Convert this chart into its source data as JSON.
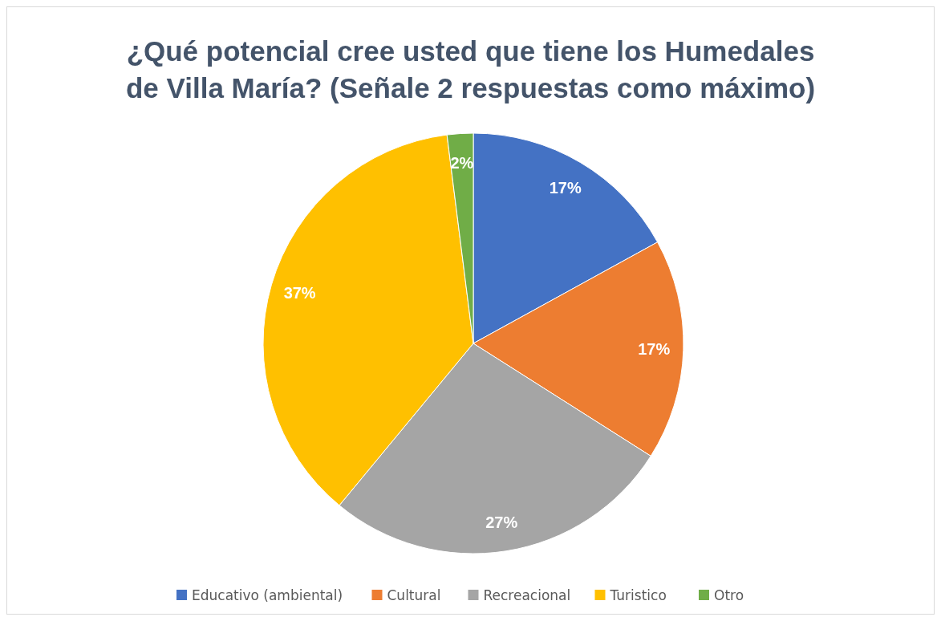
{
  "chart_data": {
    "type": "pie",
    "title": "¿Qué potencial cree usted que tiene los Humedales de Villa María? (Señale 2 respuestas como máximo)",
    "categories": [
      "Educativo (ambiental)",
      "Cultural",
      "Recreacional",
      "Turistico",
      "Otro"
    ],
    "values": [
      17,
      17,
      27,
      37,
      2
    ],
    "colors": [
      "#4472c4",
      "#ed7d31",
      "#a5a5a5",
      "#ffc000",
      "#70ad47"
    ],
    "value_labels": [
      "17%",
      "17%",
      "27%",
      "37%",
      "2%"
    ],
    "legend": "bottom"
  }
}
